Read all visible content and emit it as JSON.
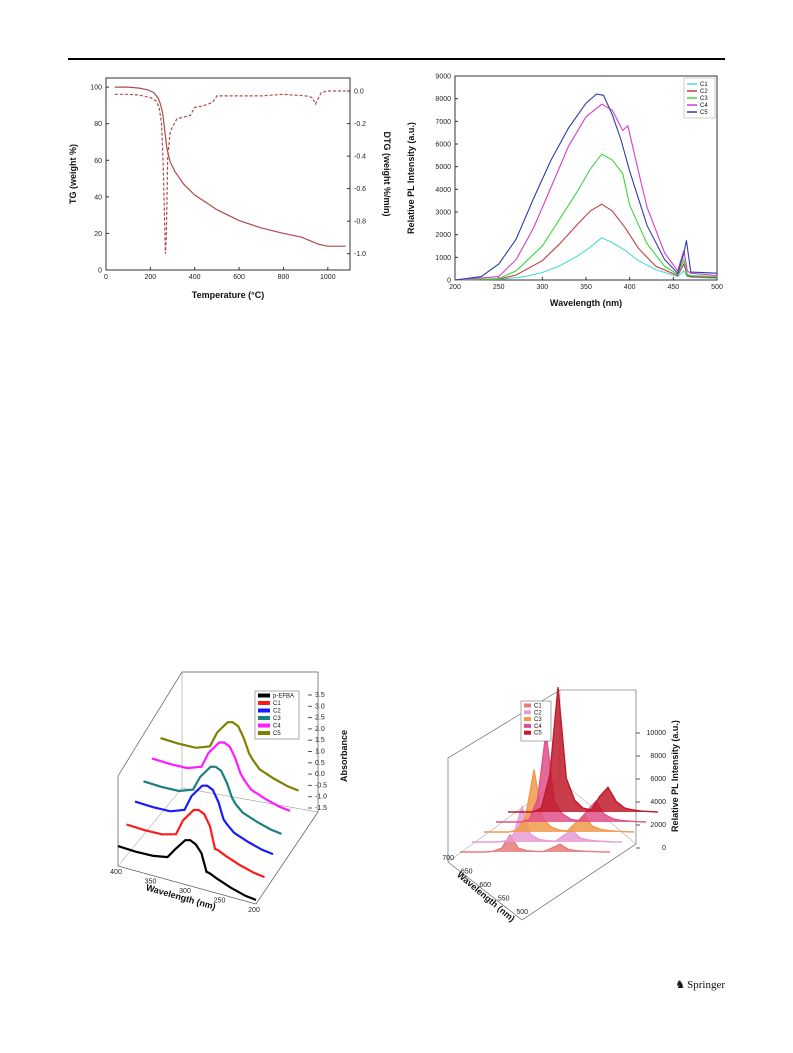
{
  "publisher": {
    "name": "Springer",
    "icon": "springer-horse-icon"
  },
  "chart_data": [
    {
      "type": "line",
      "xlabel": "Temperature (°C)",
      "ylabel": "TG (weight %)",
      "y2label": "DTG (weight %/min)",
      "xlim": [
        0,
        1100
      ],
      "ylim": [
        0,
        105
      ],
      "y2lim": [
        -1.1,
        0.08
      ],
      "xticks": [
        0,
        200,
        400,
        600,
        800,
        1000
      ],
      "yticks": [
        0,
        20,
        40,
        60,
        80,
        100
      ],
      "y2ticks": [
        0.0,
        -0.2,
        -0.4,
        -0.6,
        -0.8,
        -1.0
      ],
      "y2ticklabels": [
        "0.0",
        "-0.2",
        "-0.4",
        "-0.6",
        "-0.8",
        "-1.0"
      ],
      "color": "#b04a4a",
      "series": [
        {
          "axis": "left",
          "style": "solid",
          "x": [
            40,
            100,
            150,
            190,
            215,
            235,
            245,
            255,
            265,
            275,
            290,
            310,
            350,
            400,
            450,
            500,
            600,
            700,
            800,
            880,
            940,
            960,
            1000,
            1080
          ],
          "y": [
            100,
            100,
            99.5,
            98.5,
            97,
            94,
            91,
            86,
            76,
            66,
            59,
            54,
            47,
            41,
            37,
            33,
            27,
            23,
            20,
            18,
            15,
            14,
            13,
            13
          ]
        },
        {
          "axis": "right",
          "style": "dashed",
          "x": [
            40,
            100,
            150,
            200,
            225,
            240,
            250,
            258,
            264,
            268,
            272,
            278,
            290,
            300,
            320,
            350,
            380,
            400,
            440,
            480,
            500,
            600,
            700,
            800,
            900,
            930,
            945,
            955,
            970,
            1000,
            1080
          ],
          "y": [
            -0.02,
            -0.02,
            -0.025,
            -0.04,
            -0.06,
            -0.1,
            -0.2,
            -0.45,
            -0.8,
            -1.0,
            -0.9,
            -0.4,
            -0.25,
            -0.22,
            -0.17,
            -0.16,
            -0.15,
            -0.1,
            -0.09,
            -0.07,
            -0.03,
            -0.03,
            -0.03,
            -0.02,
            -0.03,
            -0.04,
            -0.08,
            -0.05,
            -0.01,
            0.0,
            0.0
          ]
        }
      ]
    },
    {
      "type": "line",
      "xlabel": "Wavelength (nm)",
      "ylabel": "Relative PL Intensity (a.u.)",
      "xlim": [
        200,
        500
      ],
      "ylim": [
        0,
        9000
      ],
      "xticks": [
        200,
        250,
        300,
        350,
        400,
        450,
        500
      ],
      "yticks": [
        0,
        1000,
        2000,
        3000,
        4000,
        5000,
        6000,
        7000,
        8000,
        9000
      ],
      "legend_position": "top-right",
      "series": [
        {
          "name": "C1",
          "color": "#4dd9d9",
          "x": [
            200,
            250,
            280,
            300,
            320,
            340,
            355,
            368,
            380,
            395,
            410,
            430,
            455,
            462,
            466,
            470,
            500
          ],
          "y": [
            0,
            20,
            150,
            330,
            620,
            1050,
            1450,
            1860,
            1650,
            1300,
            850,
            450,
            150,
            400,
            150,
            120,
            80
          ]
        },
        {
          "name": "C2",
          "color": "#c04040",
          "x": [
            200,
            250,
            270,
            300,
            320,
            340,
            355,
            368,
            380,
            395,
            410,
            430,
            455,
            462,
            466,
            470,
            500
          ],
          "y": [
            0,
            40,
            220,
            850,
            1600,
            2450,
            3050,
            3350,
            3050,
            2300,
            1400,
            600,
            200,
            700,
            200,
            150,
            100
          ]
        },
        {
          "name": "C3",
          "color": "#3fd43f",
          "x": [
            200,
            250,
            270,
            300,
            320,
            340,
            355,
            368,
            380,
            392,
            400,
            420,
            440,
            455,
            462,
            466,
            470,
            500
          ],
          "y": [
            0,
            60,
            400,
            1500,
            2700,
            3900,
            4900,
            5550,
            5300,
            4700,
            3300,
            1600,
            600,
            250,
            900,
            250,
            200,
            150
          ]
        },
        {
          "name": "C4",
          "color": "#d43fd4",
          "x": [
            200,
            250,
            270,
            290,
            310,
            330,
            350,
            368,
            380,
            392,
            398,
            410,
            420,
            440,
            455,
            462,
            466,
            470,
            500
          ],
          "y": [
            0,
            150,
            900,
            2300,
            4100,
            5900,
            7200,
            7750,
            7500,
            6600,
            6800,
            4800,
            3200,
            1200,
            400,
            1300,
            400,
            300,
            200
          ]
        },
        {
          "name": "C5",
          "color": "#2e3ea8",
          "x": [
            200,
            230,
            250,
            270,
            290,
            310,
            330,
            350,
            362,
            370,
            380,
            390,
            400,
            420,
            440,
            455,
            462,
            465,
            470,
            500
          ],
          "y": [
            0,
            150,
            700,
            1800,
            3600,
            5300,
            6700,
            7800,
            8200,
            8150,
            7300,
            6200,
            4800,
            2400,
            900,
            300,
            1150,
            1750,
            350,
            300
          ]
        }
      ]
    },
    {
      "type": "line",
      "view": "3d-waterfall",
      "xlabel": "Wavelength (nm)",
      "zlabel": "Absorbance",
      "xticks": [
        400,
        350,
        300,
        250,
        200
      ],
      "zticks": [
        3.5,
        3.0,
        2.5,
        2.0,
        1.5,
        1.0,
        0.5,
        0.0,
        -0.5,
        -1.0,
        -1.5
      ],
      "zticklabels": [
        "3.5",
        "3.0",
        "2.5",
        "2.0",
        "1.5",
        "1.0",
        "0.5",
        "0.0",
        "-0.5",
        "-1.0",
        "-1.5"
      ],
      "legend_position": "top-right",
      "x": [
        400,
        375,
        350,
        330,
        320,
        305,
        298,
        290,
        282,
        275,
        270,
        260,
        240,
        220,
        205
      ],
      "series": [
        {
          "name": "p-EFBA",
          "color": "#000000",
          "values": [
            -1.5,
            -1.55,
            -1.5,
            -1.3,
            -0.6,
            0.35,
            0.45,
            0.25,
            -0.3,
            -1.6,
            -1.65,
            -1.9,
            -2.3,
            -2.6,
            -2.7
          ]
        },
        {
          "name": "C1",
          "color": "#ff1a1a",
          "values": [
            -1.0,
            -1.05,
            -1.0,
            -0.7,
            0.5,
            1.5,
            1.6,
            1.4,
            0.6,
            -1.0,
            -1.05,
            -1.3,
            -1.7,
            -2.0,
            -2.1
          ]
        },
        {
          "name": "C2",
          "color": "#1a1aff",
          "values": [
            -0.4,
            -0.45,
            -0.4,
            0.0,
            1.2,
            2.2,
            2.3,
            2.1,
            1.3,
            0.1,
            -0.2,
            -0.7,
            -1.1,
            -1.4,
            -1.5
          ]
        },
        {
          "name": "C3",
          "color": "#1a8080",
          "values": [
            0.0,
            -0.05,
            0.0,
            0.4,
            1.5,
            2.5,
            2.6,
            2.4,
            1.6,
            0.6,
            0.2,
            -0.3,
            -0.7,
            -1.0,
            -1.1
          ]
        },
        {
          "name": "C4",
          "color": "#ff1aff",
          "values": [
            0.6,
            0.55,
            0.6,
            1.0,
            2.2,
            3.2,
            3.3,
            3.1,
            2.3,
            1.3,
            0.9,
            0.3,
            -0.1,
            -0.4,
            -0.5
          ]
        },
        {
          "name": "C5",
          "color": "#808000",
          "values": [
            1.0,
            0.95,
            1.0,
            1.4,
            2.6,
            3.6,
            3.7,
            3.5,
            2.7,
            1.7,
            1.3,
            0.7,
            0.3,
            0.0,
            -0.1
          ]
        }
      ]
    },
    {
      "type": "line",
      "view": "3d-waterfall",
      "xlabel": "Wavelength (nm)",
      "zlabel": "Relative PL Intensity (a.u.)",
      "xticks": [
        700,
        650,
        600,
        550,
        500
      ],
      "zticks": [
        0,
        2000,
        4000,
        6000,
        8000,
        10000
      ],
      "legend_position": "top-left",
      "x": [
        700,
        680,
        660,
        640,
        620,
        615,
        610,
        605,
        600,
        595,
        590,
        580,
        575,
        570,
        560,
        550,
        540,
        525,
        505
      ],
      "series": [
        {
          "name": "C1",
          "color": "#e87a7a",
          "values": [
            0,
            0,
            0,
            0,
            50,
            300,
            1300,
            300,
            100,
            50,
            30,
            300,
            600,
            200,
            100,
            50,
            30,
            10,
            0
          ]
        },
        {
          "name": "C2",
          "color": "#e89ad6",
          "values": [
            0,
            0,
            0,
            0,
            80,
            600,
            2700,
            600,
            200,
            100,
            60,
            500,
            900,
            300,
            150,
            80,
            40,
            10,
            0
          ]
        },
        {
          "name": "C3",
          "color": "#f09a4a",
          "values": [
            0,
            0,
            0,
            0,
            150,
            1200,
            4800,
            1100,
            400,
            150,
            80,
            700,
            1300,
            450,
            200,
            100,
            50,
            20,
            0
          ]
        },
        {
          "name": "C4",
          "color": "#e0508a",
          "values": [
            0,
            0,
            0,
            0,
            200,
            1800,
            6900,
            1600,
            600,
            200,
            100,
            900,
            1600,
            600,
            250,
            120,
            60,
            20,
            0
          ]
        },
        {
          "name": "C5",
          "color": "#c01a2a",
          "values": [
            0,
            0,
            0,
            0,
            300,
            2800,
            9600,
            2600,
            900,
            300,
            150,
            1200,
            1900,
            800,
            300,
            150,
            70,
            30,
            0
          ]
        }
      ]
    }
  ]
}
